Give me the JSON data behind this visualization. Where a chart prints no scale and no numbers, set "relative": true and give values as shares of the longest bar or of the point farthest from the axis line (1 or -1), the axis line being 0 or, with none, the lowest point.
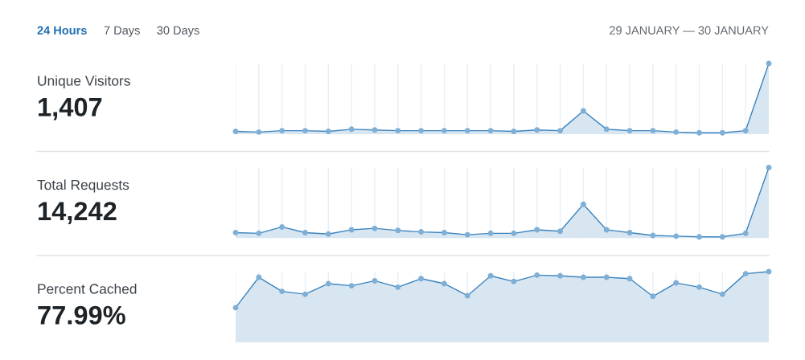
{
  "chart_data": [
    {
      "type": "other",
      "annotations": [
        "24 Hours",
        "7 Days",
        "30 Days",
        "29 JANUARY — 30 JANUARY"
      ]
    },
    {
      "type": "area",
      "ylabel": "Unique Visitors",
      "subtitle": "1,407",
      "categories": [
        null,
        null,
        null,
        null,
        null,
        null,
        null,
        null,
        null,
        null,
        null,
        null,
        null,
        null,
        null,
        null,
        null,
        null,
        null,
        null,
        null,
        null,
        null,
        null
      ],
      "relative": true,
      "marker": "circle",
      "grid": "x",
      "tick_labels": false,
      "series": [
        {
          "color": "#3a84bf",
          "values": [
            0.04,
            0.03,
            0.05,
            0.05,
            0.04,
            0.07,
            0.06,
            0.05,
            0.05,
            0.05,
            0.05,
            0.05,
            0.04,
            0.06,
            0.05,
            0.33,
            0.07,
            0.05,
            0.05,
            0.03,
            0.02,
            0.02,
            0.05,
            1
          ]
        }
      ]
    },
    {
      "type": "area",
      "ylabel": "Total Requests",
      "subtitle": "14,242",
      "categories": [
        null,
        null,
        null,
        null,
        null,
        null,
        null,
        null,
        null,
        null,
        null,
        null,
        null,
        null,
        null,
        null,
        null,
        null,
        null,
        null,
        null,
        null,
        null,
        null
      ],
      "relative": true,
      "marker": "circle",
      "grid": "x",
      "tick_labels": false,
      "series": [
        {
          "color": "#3a84bf",
          "values": [
            0.08,
            0.07,
            0.16,
            0.08,
            0.06,
            0.12,
            0.14,
            0.11,
            0.09,
            0.08,
            0.05,
            0.07,
            0.07,
            0.12,
            0.1,
            0.48,
            0.12,
            0.08,
            0.04,
            0.03,
            0.02,
            0.02,
            0.07,
            1
          ]
        }
      ]
    },
    {
      "type": "area",
      "ylabel": "Percent Cached",
      "subtitle": "77.99%",
      "categories": [
        null,
        null,
        null,
        null,
        null,
        null,
        null,
        null,
        null,
        null,
        null,
        null,
        null,
        null,
        null,
        null,
        null,
        null,
        null,
        null,
        null,
        null,
        null,
        null
      ],
      "relative": true,
      "marker": "circle",
      "grid": "x",
      "tick_labels": false,
      "series": [
        {
          "color": "#3a84bf",
          "values": [
            0.49,
            0.92,
            0.72,
            0.68,
            0.83,
            0.8,
            0.87,
            0.78,
            0.9,
            0.83,
            0.66,
            0.94,
            0.86,
            0.95,
            0.94,
            0.92,
            0.92,
            0.9,
            0.65,
            0.84,
            0.78,
            0.68,
            0.97,
            1
          ]
        }
      ]
    }
  ]
}
